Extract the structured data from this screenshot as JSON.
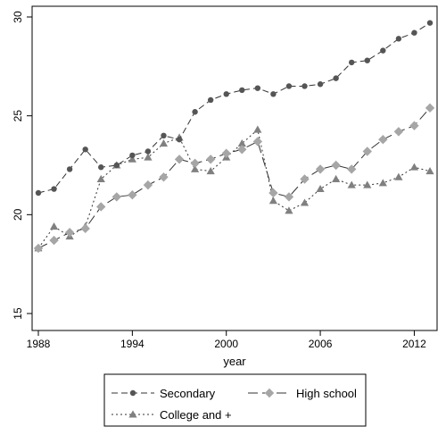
{
  "chart_data": {
    "type": "line",
    "title": "",
    "xlabel": "year",
    "ylabel": "",
    "xlim": [
      1988,
      2013
    ],
    "ylim": [
      15,
      30
    ],
    "xticks": [
      1988,
      1994,
      2000,
      2006,
      2012
    ],
    "yticks": [
      15,
      20,
      25,
      30
    ],
    "grid": false,
    "legend_position": "bottom",
    "x": [
      1988,
      1989,
      1990,
      1991,
      1992,
      1993,
      1994,
      1995,
      1996,
      1997,
      1998,
      1999,
      2000,
      2001,
      2002,
      2003,
      2004,
      2005,
      2006,
      2007,
      2008,
      2009,
      2010,
      2011,
      2012,
      2013
    ],
    "series": [
      {
        "name": "Secondary",
        "marker": "circle",
        "dash": "dash",
        "color": "#555555",
        "values": [
          21.1,
          21.3,
          22.3,
          23.3,
          22.4,
          22.5,
          23.0,
          23.2,
          24.0,
          23.8,
          25.2,
          25.8,
          26.1,
          26.3,
          26.4,
          26.1,
          26.5,
          26.5,
          26.6,
          26.9,
          27.7,
          27.8,
          28.3,
          28.9,
          29.2,
          29.7
        ]
      },
      {
        "name": "High school",
        "marker": "diamond",
        "dash": "longdash",
        "color": "#a6a6a6",
        "values": [
          18.3,
          18.7,
          19.1,
          19.3,
          20.4,
          20.9,
          21.0,
          21.5,
          21.9,
          22.8,
          22.6,
          22.8,
          23.1,
          23.3,
          23.7,
          21.1,
          20.9,
          21.8,
          22.3,
          22.5,
          22.3,
          23.2,
          23.8,
          24.2,
          24.5,
          25.4
        ]
      },
      {
        "name": "College and +",
        "marker": "triangle",
        "dash": "dot",
        "color": "#808080",
        "values": [
          18.3,
          19.4,
          18.9,
          19.4,
          21.8,
          22.5,
          22.8,
          22.9,
          23.6,
          23.9,
          22.3,
          22.2,
          22.9,
          23.6,
          24.3,
          20.7,
          20.2,
          20.6,
          21.3,
          21.8,
          21.5,
          21.5,
          21.6,
          21.9,
          22.4,
          22.2
        ]
      }
    ]
  }
}
